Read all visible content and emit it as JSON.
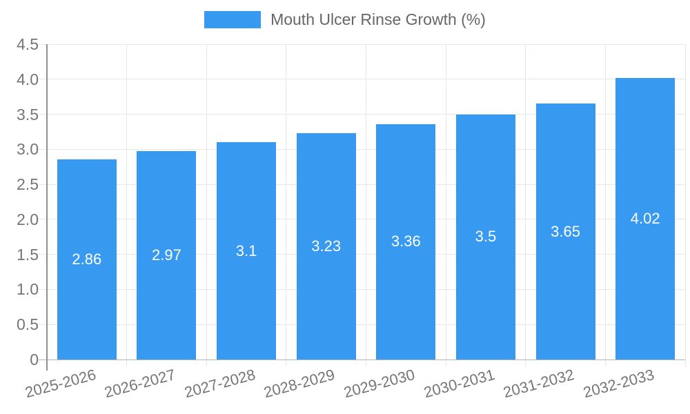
{
  "chart_data": {
    "type": "bar",
    "title": "Mouth Ulcer Rinse Growth (%)",
    "categories": [
      "2025-2026",
      "2026-2027",
      "2027-2028",
      "2028-2029",
      "2029-2030",
      "2030-2031",
      "2031-2032",
      "2032-2033"
    ],
    "values": [
      2.86,
      2.97,
      3.1,
      3.23,
      3.36,
      3.5,
      3.65,
      4.02
    ],
    "value_labels": [
      "2.86",
      "2.97",
      "3.1",
      "3.23",
      "3.36",
      "3.5",
      "3.65",
      "4.02"
    ],
    "xlabel": "",
    "ylabel": "",
    "ylim": [
      0,
      4.5
    ],
    "yticks": [
      0,
      0.5,
      1,
      1.5,
      2,
      2.5,
      3,
      3.5,
      4,
      4.5
    ],
    "ytick_labels": [
      "0",
      "0.5",
      "1.0",
      "1.5",
      "2.0",
      "2.5",
      "3.0",
      "3.5",
      "4.0",
      "4.5"
    ],
    "grid": true,
    "legend_position": "top",
    "bar_color": "#3899F0",
    "bar_value_color": "#ffffff"
  },
  "legend": {
    "label": "Mouth Ulcer Rinse Growth (%)"
  }
}
